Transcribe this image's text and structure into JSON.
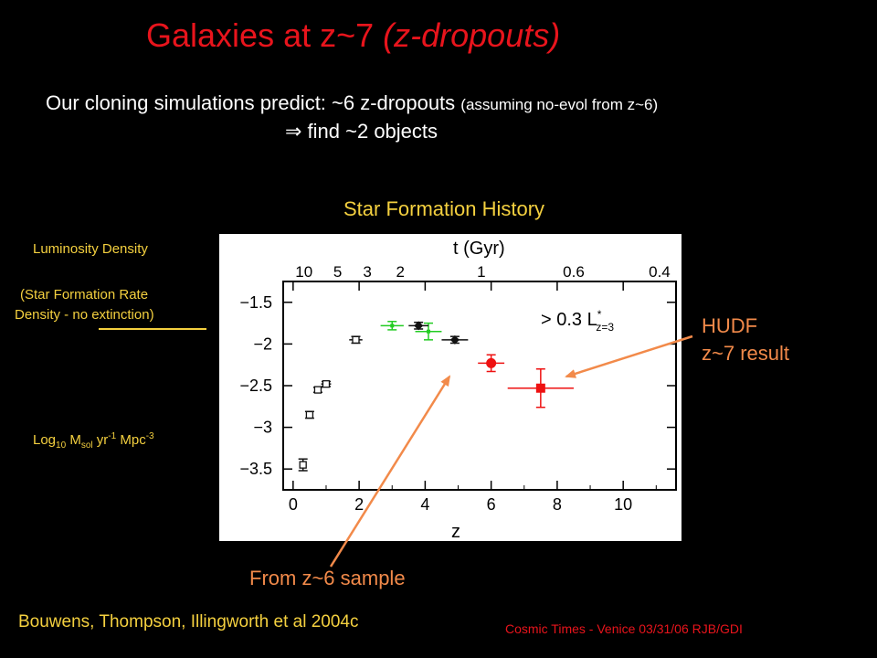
{
  "slide": {
    "title_main": "Galaxies at z~7 ",
    "title_italic": "(z-dropouts)",
    "line1_main": "Our cloning simulations predict:  ~6 z-dropouts ",
    "line1_small": "(assuming no-evol from z~6)",
    "line2": "⇒ find ~2 objects",
    "plot_caption": "Star Formation History",
    "ylabel_lines": [
      "Luminosity Density",
      "(Star Formation Rate",
      "Density - no extinction)"
    ],
    "units": {
      "log": "Log",
      "log_sub": "10",
      "m": " M",
      "m_sub": "sol",
      "yr": " yr",
      "yr_sup": "-1",
      "mpc": " Mpc",
      "mpc_sup": "-3"
    },
    "annotation_hudf": [
      "HUDF",
      "z~7 result"
    ],
    "annotation_z6": "From z~6 sample",
    "citation": "Bouwens, Thompson, Illingworth et al 2004c",
    "footer": "Cosmic Times - Venice 03/31/06  RJB/GDI",
    "colors": {
      "title_red": "#e8141c",
      "label_yellow": "#f4d03f",
      "annotation_orange": "#f28a4a"
    }
  },
  "chart_data": {
    "type": "scatter",
    "xlabel": "z",
    "top_axis_label": "t (Gyr)",
    "top_ticks": [
      "10",
      "5",
      "3",
      "2",
      "1",
      "0.6",
      "0.4"
    ],
    "x_ticks": [
      "0",
      "2",
      "4",
      "6",
      "8",
      "10"
    ],
    "y_ticks": [
      "−1.5",
      "−2",
      "−2.5",
      "−3",
      "−3.5"
    ],
    "xlim": [
      -0.3,
      11.6
    ],
    "ylim": [
      -3.75,
      -1.25
    ],
    "legend_text": "> 0.3 L",
    "legend_sup": "*",
    "legend_sub": "z=3",
    "series": [
      {
        "color": "#111111",
        "marker": "square-open",
        "points": [
          {
            "x": 0.3,
            "y": -3.45,
            "yerr": 0.07
          },
          {
            "x": 0.5,
            "y": -2.85,
            "yerr": 0.04
          },
          {
            "x": 0.75,
            "y": -2.55,
            "yerr": 0.03
          },
          {
            "x": 1.0,
            "y": -2.48,
            "xerr": 0.15,
            "yerr": 0.03
          },
          {
            "x": 1.9,
            "y": -1.95,
            "xerr": 0.2,
            "yerr": 0.04
          }
        ]
      },
      {
        "color": "#22cc22",
        "marker": "cross",
        "points": [
          {
            "x": 3.0,
            "y": -1.78,
            "xerr": 0.35,
            "yerr": 0.05
          },
          {
            "x": 4.1,
            "y": -1.85,
            "xerr": 0.4,
            "yerr": 0.1
          }
        ]
      },
      {
        "color": "#111111",
        "marker": "diamond",
        "points": [
          {
            "x": 3.8,
            "y": -1.78,
            "xerr": 0.3,
            "yerr": 0.04
          },
          {
            "x": 4.9,
            "y": -1.95,
            "xerr": 0.4,
            "yerr": 0.04
          }
        ]
      },
      {
        "color": "#ee1111",
        "marker": "circle",
        "points": [
          {
            "x": 6.0,
            "y": -2.23,
            "xerr": 0.4,
            "yerr": 0.1
          }
        ]
      },
      {
        "color": "#ee1111",
        "marker": "square",
        "points": [
          {
            "x": 7.5,
            "y": -2.53,
            "xerr": 1.0,
            "yerr": 0.23
          }
        ]
      }
    ]
  }
}
